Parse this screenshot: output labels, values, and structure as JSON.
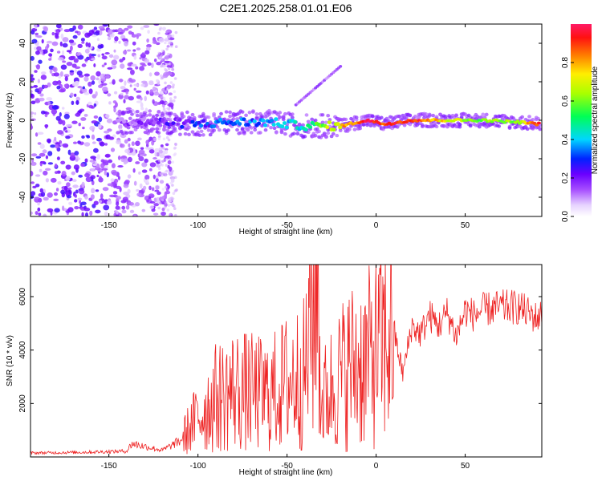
{
  "title": "C2E1.2025.258.01.01.E06",
  "chart_data": [
    {
      "type": "heatmap",
      "xlabel": "Height of straight line (km)",
      "ylabel": "Frequency (Hz)",
      "xlim": [
        -194,
        93
      ],
      "ylim": [
        -50,
        50
      ],
      "xticks": [
        -150,
        -100,
        -50,
        0,
        50
      ],
      "yticks": [
        -40,
        -20,
        0,
        20,
        40
      ],
      "colorbar": {
        "label": "Normalized spectral amplitude",
        "range": [
          0.0,
          1.0
        ],
        "ticks": [
          0.0,
          0.2,
          0.4,
          0.6,
          0.8
        ]
      },
      "ridge": [
        {
          "x": -145,
          "freq": -1,
          "amp": 0.12
        },
        {
          "x": -120,
          "freq": -1,
          "amp": 0.18
        },
        {
          "x": -100,
          "freq": -2,
          "amp": 0.28
        },
        {
          "x": -80,
          "freq": -1,
          "amp": 0.32
        },
        {
          "x": -60,
          "freq": -1,
          "amp": 0.35
        },
        {
          "x": -40,
          "freq": -3,
          "amp": 0.45
        },
        {
          "x": -20,
          "freq": -3,
          "amp": 0.75
        },
        {
          "x": -5,
          "freq": 0,
          "amp": 0.95
        },
        {
          "x": 5,
          "freq": -2,
          "amp": 0.9
        },
        {
          "x": 20,
          "freq": 0,
          "amp": 0.95
        },
        {
          "x": 40,
          "freq": 0,
          "amp": 0.7
        },
        {
          "x": 60,
          "freq": 0,
          "amp": 0.6
        },
        {
          "x": 80,
          "freq": -1,
          "amp": 0.65
        },
        {
          "x": 92,
          "freq": -2,
          "amp": 0.95
        }
      ]
    },
    {
      "type": "line",
      "xlabel": "Height of straight line (km)",
      "ylabel": "SNR (10 * v/v)",
      "xlim": [
        -194,
        93
      ],
      "ylim": [
        0,
        7200
      ],
      "xticks": [
        -150,
        -100,
        -50,
        0,
        50
      ],
      "yticks": [
        2000,
        4000,
        6000
      ],
      "series": [
        {
          "name": "SNR",
          "color": "#ee2222",
          "x": [
            -194,
            -180,
            -160,
            -140,
            -137,
            -120,
            -110,
            -100,
            -90,
            -80,
            -70,
            -60,
            -50,
            -40,
            -33,
            -31,
            -25,
            -15,
            -5,
            5,
            10,
            15,
            20,
            25,
            30,
            35,
            40,
            45,
            50,
            55,
            60,
            70,
            80,
            90,
            93
          ],
          "y": [
            150,
            160,
            180,
            220,
            500,
            250,
            600,
            1500,
            2200,
            2500,
            2400,
            2300,
            2800,
            3100,
            7200,
            2000,
            2600,
            3400,
            3600,
            4300,
            4700,
            3100,
            4900,
            4600,
            5300,
            4900,
            5400,
            4500,
            5500,
            5300,
            5500,
            5600,
            5600,
            5200,
            5300
          ]
        }
      ]
    }
  ]
}
